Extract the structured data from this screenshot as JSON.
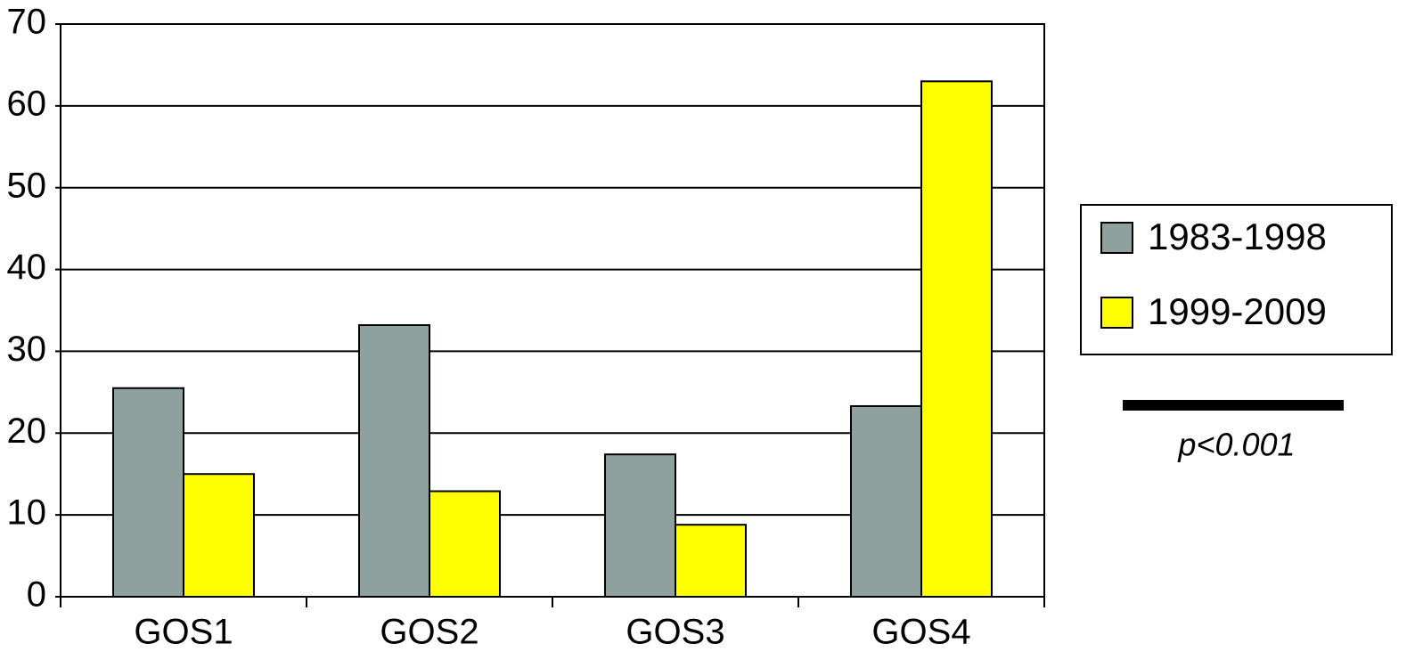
{
  "chart_data": {
    "type": "bar",
    "categories": [
      "GOS1",
      "GOS2",
      "GOS3",
      "GOS4"
    ],
    "series": [
      {
        "name": "1983-1998",
        "color": "#8fa19e",
        "values": [
          25.5,
          33.2,
          17.4,
          23.3
        ]
      },
      {
        "name": "1999-2009",
        "color": "#ffff00",
        "values": [
          15,
          12.9,
          8.8,
          63
        ]
      }
    ],
    "ylim": [
      0,
      70
    ],
    "yticks": [
      0,
      10,
      20,
      30,
      40,
      50,
      60,
      70
    ],
    "grid": true,
    "legend": "right",
    "annotation": "p<0.001"
  }
}
